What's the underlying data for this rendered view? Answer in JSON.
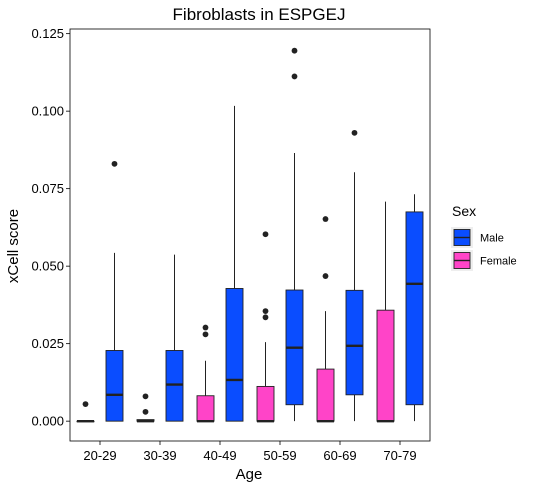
{
  "chart_data": {
    "type": "boxplot",
    "title": "Fibroblasts in ESPGEJ",
    "xlabel": "Age",
    "ylabel": "xCell score",
    "ylim": [
      -0.0064,
      0.1265
    ],
    "y_ticks": [
      0.0,
      0.025,
      0.05,
      0.075,
      0.1,
      0.125
    ],
    "y_tick_labels": [
      "0.000",
      "0.025",
      "0.050",
      "0.075",
      "0.100",
      "0.125"
    ],
    "categories": [
      "20-29",
      "30-39",
      "40-49",
      "50-59",
      "60-69",
      "70-79"
    ],
    "grid": false,
    "legend": {
      "title": "Sex",
      "placement": "right",
      "entries": [
        {
          "label": "Male",
          "color": "#0A4DFF"
        },
        {
          "label": "Female",
          "color": "#FF44C8"
        }
      ]
    },
    "series": [
      {
        "name": "Female",
        "color": "#FF44C8",
        "boxes": [
          {
            "category": "20-29",
            "whisker_low": 0.0,
            "q1": 0.0,
            "median": 0.0,
            "q3": 0.0,
            "whisker_high": 0.0,
            "outliers": [
              0.0055
            ]
          },
          {
            "category": "30-39",
            "whisker_low": 0.0,
            "q1": 0.0,
            "median": 0.0,
            "q3": 0.0005,
            "whisker_high": 0.0005,
            "outliers": [
              0.003,
              0.008
            ]
          },
          {
            "category": "40-49",
            "whisker_low": 0.0,
            "q1": 0.0,
            "median": 0.0,
            "q3": 0.0082,
            "whisker_high": 0.0195,
            "outliers": [
              0.028,
              0.0302
            ]
          },
          {
            "category": "50-59",
            "whisker_low": 0.0,
            "q1": 0.0,
            "median": 0.0,
            "q3": 0.0112,
            "whisker_high": 0.0255,
            "outliers": [
              0.0335,
              0.0355,
              0.0603
            ]
          },
          {
            "category": "60-69",
            "whisker_low": 0.0,
            "q1": 0.0,
            "median": 0.0,
            "q3": 0.0168,
            "whisker_high": 0.0355,
            "outliers": [
              0.0468,
              0.0652
            ]
          },
          {
            "category": "70-79",
            "whisker_low": 0.0,
            "q1": 0.0,
            "median": 0.0,
            "q3": 0.0358,
            "whisker_high": 0.0708,
            "outliers": []
          }
        ]
      },
      {
        "name": "Male",
        "color": "#0A4DFF",
        "boxes": [
          {
            "category": "20-29",
            "whisker_low": 0.0,
            "q1": 0.0,
            "median": 0.0085,
            "q3": 0.0228,
            "whisker_high": 0.0543,
            "outliers": [
              0.083
            ]
          },
          {
            "category": "30-39",
            "whisker_low": 0.0,
            "q1": 0.0,
            "median": 0.0118,
            "q3": 0.0228,
            "whisker_high": 0.0537,
            "outliers": []
          },
          {
            "category": "40-49",
            "whisker_low": 0.0,
            "q1": 0.0,
            "median": 0.0133,
            "q3": 0.0428,
            "whisker_high": 0.1017,
            "outliers": []
          },
          {
            "category": "50-59",
            "whisker_low": 0.0,
            "q1": 0.0053,
            "median": 0.0237,
            "q3": 0.0423,
            "whisker_high": 0.0865,
            "outliers": [
              0.1112,
              0.1195
            ]
          },
          {
            "category": "60-69",
            "whisker_low": 0.0,
            "q1": 0.0085,
            "median": 0.0243,
            "q3": 0.0422,
            "whisker_high": 0.0803,
            "outliers": [
              0.093
            ]
          },
          {
            "category": "70-79",
            "whisker_low": 0.0,
            "q1": 0.0053,
            "median": 0.0443,
            "q3": 0.0675,
            "whisker_high": 0.0732,
            "outliers": []
          }
        ]
      }
    ]
  }
}
